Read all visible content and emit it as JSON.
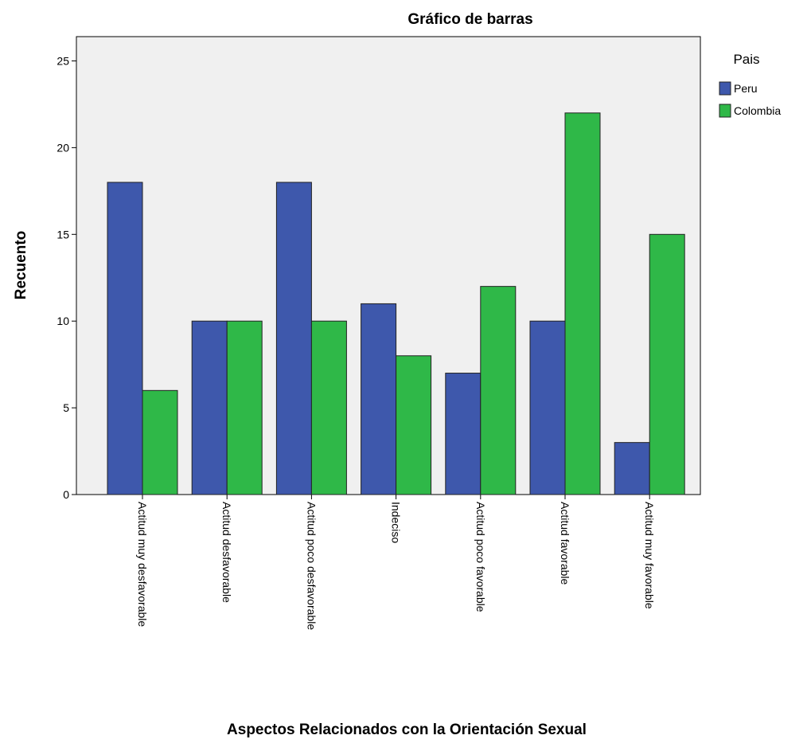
{
  "chart_data": {
    "type": "bar",
    "title": "Gráfico de barras",
    "x_label": "Aspectos Relacionados con la Orientación Sexual",
    "y_label": "Recuento",
    "legend_title": "Pais",
    "legend": "right",
    "categories": [
      "Actitud muy desfavorable",
      "Actitud desfavorable",
      "Actitud poco desfavorable",
      "Indeciso",
      "Actitud poco favorable",
      "Actitud favorable",
      "Actitud muy favorable"
    ],
    "series": [
      {
        "name": "Peru",
        "color": "#3e58ac",
        "values": [
          18,
          10,
          18,
          11,
          7,
          10,
          3
        ]
      },
      {
        "name": "Colombia",
        "color": "#2fb848",
        "values": [
          6,
          10,
          10,
          8,
          12,
          22,
          15
        ]
      }
    ],
    "ylim": [
      0,
      26.4
    ],
    "yticks": [
      0,
      5,
      10,
      15,
      20,
      25
    ],
    "grid": false
  }
}
